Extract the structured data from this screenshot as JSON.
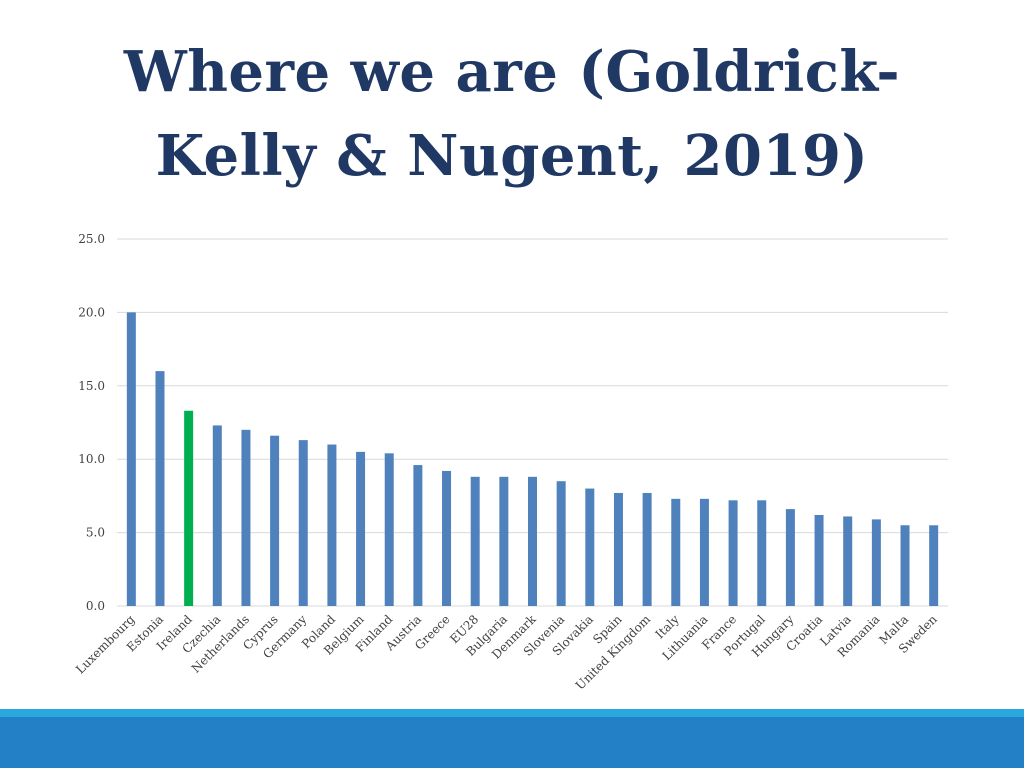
{
  "slide": {
    "title_line1": "Where we are (Goldrick-",
    "title_line2": "Kelly & Nugent, 2019)"
  },
  "colors": {
    "title": "#1f3864",
    "bar": "#4f81bd",
    "highlight_bar": "#00b050",
    "grid": "#d9d9d9",
    "footer_light": "#29a8e0",
    "footer_dark": "#2480c6"
  },
  "chart_data": {
    "type": "bar",
    "title": "",
    "xlabel": "",
    "ylabel": "",
    "ylim": [
      0,
      25
    ],
    "yticks": [
      "0.0",
      "5.0",
      "10.0",
      "15.0",
      "20.0",
      "25.0"
    ],
    "grid": true,
    "highlight": "Ireland",
    "categories": [
      "Luxembourg",
      "Estonia",
      "Ireland",
      "Czechia",
      "Netherlands",
      "Cyprus",
      "Germany",
      "Poland",
      "Belgium",
      "Finland",
      "Austria",
      "Greece",
      "EU28",
      "Bulgaria",
      "Denmark",
      "Slovenia",
      "Slovakia",
      "Spain",
      "United Kingdom",
      "Italy",
      "Lithuania",
      "France",
      "Portugal",
      "Hungary",
      "Croatia",
      "Latvia",
      "Romania",
      "Malta",
      "Sweden"
    ],
    "values": [
      20.0,
      16.0,
      13.3,
      12.3,
      12.0,
      11.6,
      11.3,
      11.0,
      10.5,
      10.4,
      9.6,
      9.2,
      8.8,
      8.8,
      8.8,
      8.5,
      8.0,
      7.7,
      7.7,
      7.3,
      7.3,
      7.2,
      7.2,
      6.6,
      6.2,
      6.1,
      5.9,
      5.5,
      5.5
    ]
  }
}
